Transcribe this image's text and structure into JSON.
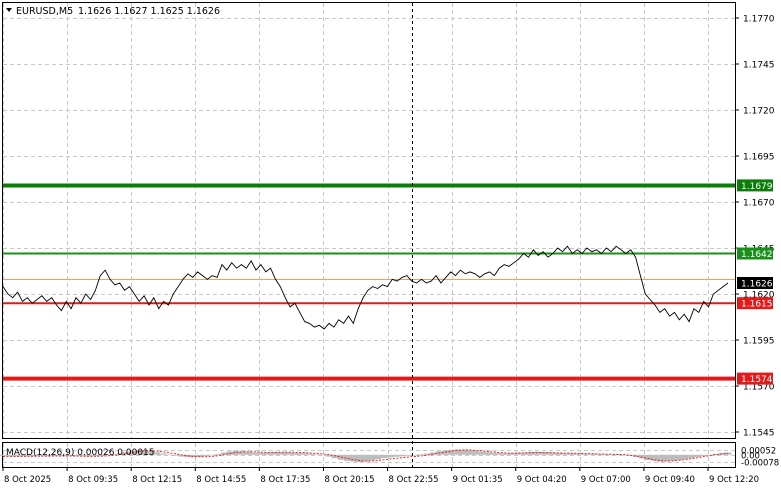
{
  "header": {
    "symbol": "EURUSD,M5",
    "ohlc": "1.1626 1.1627 1.1625 1.1626"
  },
  "macd_header": "MACD(12,26,9) 0.00026 0.00015",
  "colors": {
    "grid": "#c8c8c8",
    "price_line": "#000000",
    "green_thick": "#0a7d0a",
    "green_thin": "#1a8f1a",
    "red": "#e41a1a",
    "orange": "#f0a050",
    "hist": "#bdbdbd",
    "signal": "#e41a1a"
  },
  "chart_data": [
    {
      "type": "line",
      "title": "EURUSD,M5",
      "ylim": [
        1.154,
        1.1785
      ],
      "y_ticks": [
        "1.1770",
        "1.1745",
        "1.1720",
        "1.1695",
        "1.1670",
        "1.1645",
        "1.1620",
        "1.1595",
        "1.1570",
        "1.1545"
      ],
      "y_tick_values": [
        1.177,
        1.1745,
        1.172,
        1.1695,
        1.167,
        1.1645,
        1.162,
        1.1595,
        1.157,
        1.1545
      ],
      "x_labels": [
        "8 Oct 2025",
        "8 Oct 09:35",
        "8 Oct 12:15",
        "8 Oct 14:55",
        "8 Oct 17:35",
        "8 Oct 20:15",
        "8 Oct 22:55",
        "9 Oct 01:35",
        "9 Oct 04:20",
        "9 Oct 07:00",
        "9 Oct 09:40",
        "9 Oct 12:20"
      ],
      "levels": [
        {
          "value": 1.1679,
          "label": "1.1679",
          "color": "#0a7d0a",
          "style": "thick"
        },
        {
          "value": 1.1642,
          "label": "1.1642",
          "color": "#1a8f1a",
          "style": "thin"
        },
        {
          "value": 1.1615,
          "label": "1.1615",
          "color": "#e41a1a",
          "style": "medium"
        },
        {
          "value": 1.1574,
          "label": "1.1574",
          "color": "#e41a1a",
          "style": "thick"
        }
      ],
      "current_price": {
        "value": 1.1626,
        "label": "1.1626"
      },
      "bid_line": 1.1628,
      "series": [
        {
          "values": [
            1.1624,
            1.162,
            1.1618,
            1.1621,
            1.1616,
            1.1618,
            1.1615,
            1.1617,
            1.1619,
            1.1616,
            1.1618,
            1.1614,
            1.1611,
            1.1616,
            1.1612,
            1.1618,
            1.1615,
            1.162,
            1.1617,
            1.1622,
            1.163,
            1.1633,
            1.1628,
            1.1625,
            1.1626,
            1.1622,
            1.1624,
            1.162,
            1.1616,
            1.1619,
            1.1614,
            1.1618,
            1.1612,
            1.1616,
            1.1614,
            1.162,
            1.1624,
            1.1628,
            1.1631,
            1.1629,
            1.1632,
            1.163,
            1.1628,
            1.163,
            1.1629,
            1.1636,
            1.1633,
            1.1637,
            1.1634,
            1.1636,
            1.1634,
            1.1638,
            1.1633,
            1.1636,
            1.1632,
            1.1634,
            1.1628,
            1.1624,
            1.1618,
            1.1613,
            1.1615,
            1.161,
            1.1605,
            1.1604,
            1.1602,
            1.1603,
            1.1601,
            1.1604,
            1.1602,
            1.1606,
            1.1604,
            1.1608,
            1.1604,
            1.1612,
            1.1618,
            1.1622,
            1.1624,
            1.1623,
            1.1625,
            1.1624,
            1.1628,
            1.1627,
            1.1629,
            1.163,
            1.1627,
            1.1626,
            1.1628,
            1.1626,
            1.1627,
            1.163,
            1.1626,
            1.1629,
            1.1632,
            1.163,
            1.1633,
            1.1631,
            1.1632,
            1.1631,
            1.1629,
            1.1631,
            1.1632,
            1.163,
            1.1634,
            1.1636,
            1.1635,
            1.1637,
            1.1639,
            1.1642,
            1.164,
            1.1644,
            1.1641,
            1.1643,
            1.164,
            1.1642,
            1.1645,
            1.1643,
            1.1646,
            1.1642,
            1.1644,
            1.1642,
            1.1645,
            1.1643,
            1.1644,
            1.1642,
            1.1645,
            1.1643,
            1.1646,
            1.1644,
            1.1642,
            1.1644,
            1.164,
            1.163,
            1.162,
            1.1617,
            1.1614,
            1.161,
            1.1612,
            1.1608,
            1.161,
            1.1606,
            1.1609,
            1.1605,
            1.1612,
            1.161,
            1.1616,
            1.1613,
            1.162,
            1.1622,
            1.1624,
            1.1626
          ]
        }
      ]
    },
    {
      "type": "bar",
      "title": "MACD(12,26,9) 0.00026 0.00015",
      "ylim": [
        -0.00085,
        0.0007
      ],
      "y_ticks": [
        "0.00052",
        "0.00",
        "-0.00078"
      ],
      "y_tick_values": [
        0.00052,
        0.0,
        -0.00078
      ],
      "series": [
        {
          "name": "MACD(12,26,9)",
          "values": [
            -0.00012,
            -0.00014,
            -0.00015,
            -0.00016,
            -0.00016,
            -0.00015,
            -0.00014,
            -0.00013,
            -0.00012,
            -0.00012,
            -0.00012,
            -0.00013,
            -0.00014,
            -0.00016,
            -0.00018,
            -0.00016,
            -0.00012,
            -6e-05,
            4e-05,
            0.00016,
            0.0003,
            0.00044,
            0.00052,
            0.0005,
            0.0004,
            0.00028,
            0.00014,
            2e-05,
            -0.0001,
            -0.0002,
            -0.00026,
            -0.00028,
            -0.00024,
            -0.00016,
            -6e-05,
            0.0001,
            0.00026,
            0.00038,
            0.00042,
            0.00038,
            0.0003,
            0.00024,
            0.00022,
            0.00024,
            0.00028,
            0.0003,
            0.00028,
            0.00026,
            0.00022,
            0.00018,
            0.00012,
            6e-05,
            -4e-05,
            -0.0002,
            -0.00038,
            -0.00054,
            -0.00066,
            -0.00074,
            -0.00078,
            -0.00074,
            -0.00062,
            -0.00048,
            -0.00036,
            -0.00028,
            -0.00022,
            -0.00016,
            -0.0001,
            -4e-05,
            4e-05,
            0.00014,
            0.00026,
            0.00038,
            0.00048,
            0.00054,
            0.00058,
            0.00056,
            0.0005,
            0.00042,
            0.00034,
            0.00028,
            0.00022,
            0.00018,
            0.00016,
            0.00018,
            0.00022,
            0.00026,
            0.0003,
            0.00032,
            0.0003,
            0.00026,
            0.00022,
            0.00018,
            0.00016,
            0.00014,
            0.00014,
            0.00012,
            0.00012,
            0.0001,
            8e-05,
            6e-05,
            4e-05,
            0.0,
            -0.0001,
            -0.00024,
            -0.0004,
            -0.00056,
            -0.00068,
            -0.00074,
            -0.00072,
            -0.00066,
            -0.00058,
            -0.00048,
            -0.00036,
            -0.00024,
            -0.00012,
            -2e-05,
            0.0001,
            0.0002,
            0.00026
          ]
        },
        {
          "name": "Signal",
          "values": [
            -0.0002,
            -0.00019,
            -0.00018,
            -0.00017,
            -0.00016,
            -0.00016,
            -0.00015,
            -0.00015,
            -0.00014,
            -0.00014,
            -0.00014,
            -0.00014,
            -0.00014,
            -0.00015,
            -0.00016,
            -0.00016,
            -0.00015,
            -0.00012,
            -7e-05,
            2e-05,
            0.00012,
            0.00024,
            0.00036,
            0.00044,
            0.00044,
            0.0004,
            0.00032,
            0.00022,
            0.00012,
            0.0,
            -0.0001,
            -0.00018,
            -0.00022,
            -0.00022,
            -0.00018,
            -0.0001,
            2e-05,
            0.00014,
            0.00026,
            0.00032,
            0.00034,
            0.00032,
            0.00028,
            0.00026,
            0.00026,
            0.00028,
            0.00028,
            0.00028,
            0.00026,
            0.00024,
            0.0002,
            0.00016,
            0.0001,
            2e-05,
            -0.0001,
            -0.00024,
            -0.00038,
            -0.00052,
            -0.00062,
            -0.00068,
            -0.00068,
            -0.00062,
            -0.00054,
            -0.00046,
            -0.00038,
            -0.0003,
            -0.00024,
            -0.00018,
            -0.00012,
            -4e-05,
            6e-05,
            0.00018,
            0.0003,
            0.0004,
            0.00048,
            0.00052,
            0.00052,
            0.00048,
            0.00042,
            0.00036,
            0.0003,
            0.00024,
            0.0002,
            0.00018,
            0.0002,
            0.00022,
            0.00024,
            0.00026,
            0.00026,
            0.00024,
            0.00022,
            0.0002,
            0.00018,
            0.00016,
            0.00014,
            0.00012,
            0.00012,
            0.0001,
            8e-05,
            6e-05,
            4e-05,
            2e-05,
            -4e-05,
            -0.00014,
            -0.00026,
            -0.0004,
            -0.00054,
            -0.00064,
            -0.00068,
            -0.00066,
            -0.0006,
            -0.00052,
            -0.00042,
            -0.00032,
            -0.0002,
            -0.0001,
            2e-05,
            0.0001,
            0.00015
          ]
        }
      ]
    }
  ]
}
